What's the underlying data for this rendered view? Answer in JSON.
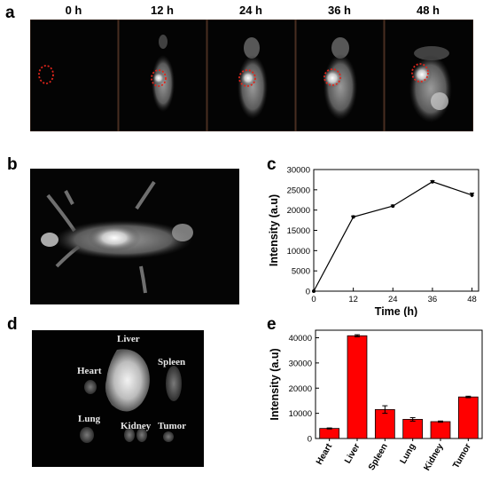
{
  "panels": {
    "a": {
      "letter": "a",
      "time_labels": [
        "0 h",
        "12 h",
        "24 h",
        "36 h",
        "48 h"
      ],
      "highlight_color": "#e0251b"
    },
    "b": {
      "letter": "b"
    },
    "c": {
      "letter": "c"
    },
    "d": {
      "letter": "d",
      "organs": [
        "Liver",
        "Heart",
        "Spleen",
        "Lung",
        "Kidney",
        "Tumor"
      ]
    },
    "e": {
      "letter": "e"
    }
  },
  "chart_data": [
    {
      "panel": "c",
      "type": "line",
      "x": [
        0,
        12,
        24,
        36,
        48
      ],
      "series": [
        {
          "values": [
            0,
            18300,
            21000,
            27000,
            23700
          ],
          "errors": [
            0,
            250,
            250,
            250,
            500
          ]
        }
      ],
      "xlabel": "Time (h)",
      "ylabel": "Intensity (a.u)",
      "xlim": [
        0,
        50
      ],
      "ylim": [
        0,
        30000
      ],
      "xticks": [
        "0",
        "12",
        "24",
        "36",
        "48"
      ],
      "yticks": [
        "0",
        "5000",
        "10000",
        "15000",
        "20000",
        "25000",
        "30000"
      ],
      "grid": false,
      "color": "#000000"
    },
    {
      "panel": "e",
      "type": "bar",
      "categories": [
        "Heart",
        "Liver",
        "Spleen",
        "Lung",
        "Kidney",
        "Tumor"
      ],
      "values": [
        4000,
        40800,
        11500,
        7600,
        6700,
        16500
      ],
      "errors": [
        200,
        400,
        1500,
        700,
        250,
        300
      ],
      "xlabel": "",
      "ylabel": "Intensity (a.u)",
      "ylim": [
        0,
        43000
      ],
      "yticks": [
        "0",
        "10000",
        "20000",
        "30000",
        "40000"
      ],
      "grid": false,
      "color": "#ff0000"
    }
  ]
}
